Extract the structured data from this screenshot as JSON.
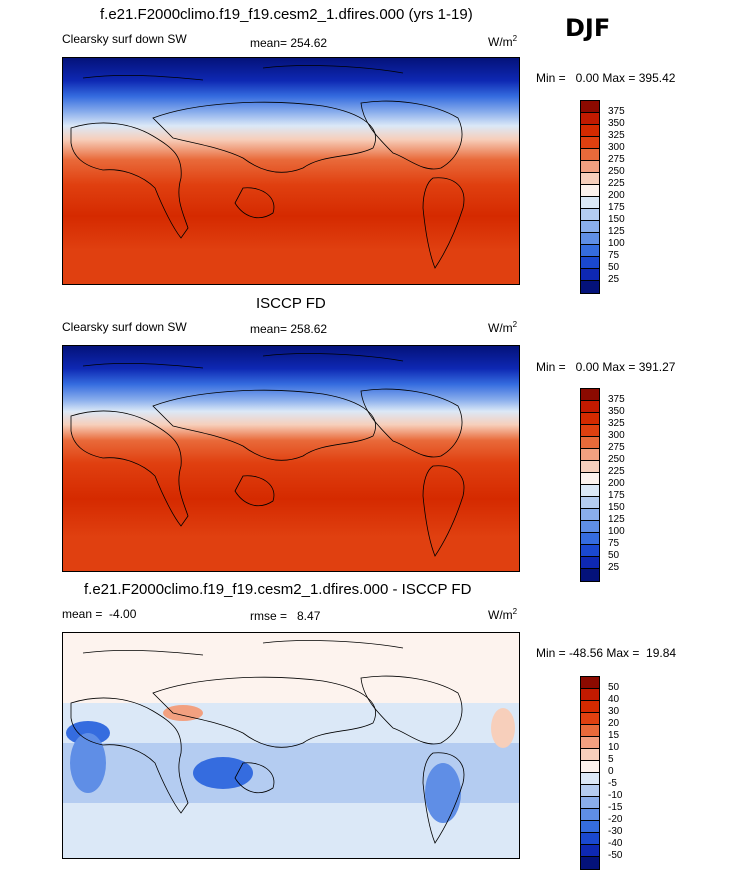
{
  "djf": "DJF",
  "unit_label": "W/m",
  "unit_sup": "2",
  "panel1": {
    "title": "f.e21.F2000climo.f19_f19.cesm2_1.dfires.000 (yrs 1-19)",
    "left_label": "Clearsky surf down SW",
    "mean_label": "mean= 254.62",
    "minmax": "Min =   0.00 Max = 395.42"
  },
  "panel2": {
    "title": "ISCCP FD",
    "left_label": "Clearsky surf down SW",
    "mean_label": "mean= 258.62",
    "minmax": "Min =   0.00 Max = 391.27"
  },
  "panel3": {
    "title": "f.e21.F2000climo.f19_f19.cesm2_1.dfires.000 - ISCCP FD",
    "left_label": "mean =  -4.00",
    "mean_label": "rmse =   8.47",
    "minmax": "Min = -48.56 Max =  19.84"
  },
  "cbar_abs": {
    "labels": [
      "375",
      "350",
      "325",
      "300",
      "275",
      "250",
      "225",
      "200",
      "175",
      "150",
      "125",
      "100",
      "75",
      "50",
      "25"
    ],
    "colors": [
      "#8b0a00",
      "#c21a00",
      "#d52a00",
      "#e04010",
      "#e96a3a",
      "#f2a080",
      "#f7cfbb",
      "#fdf3ee",
      "#dbe8f7",
      "#b4ccf1",
      "#8aaeec",
      "#5f8ee6",
      "#356cdf",
      "#1a48d0",
      "#0e28b3",
      "#04127a"
    ]
  },
  "cbar_diff": {
    "labels": [
      "50",
      "40",
      "30",
      "20",
      "15",
      "10",
      "5",
      "0",
      "-5",
      "-10",
      "-15",
      "-20",
      "-30",
      "-40",
      "-50"
    ],
    "colors": [
      "#8b0a00",
      "#c21a00",
      "#d52a00",
      "#e04010",
      "#e96a3a",
      "#f2a080",
      "#f7cfbb",
      "#fdf3ee",
      "#dbe8f7",
      "#b4ccf1",
      "#8aaeec",
      "#5f8ee6",
      "#356cdf",
      "#1a48d0",
      "#0e28b3",
      "#04127a"
    ]
  }
}
